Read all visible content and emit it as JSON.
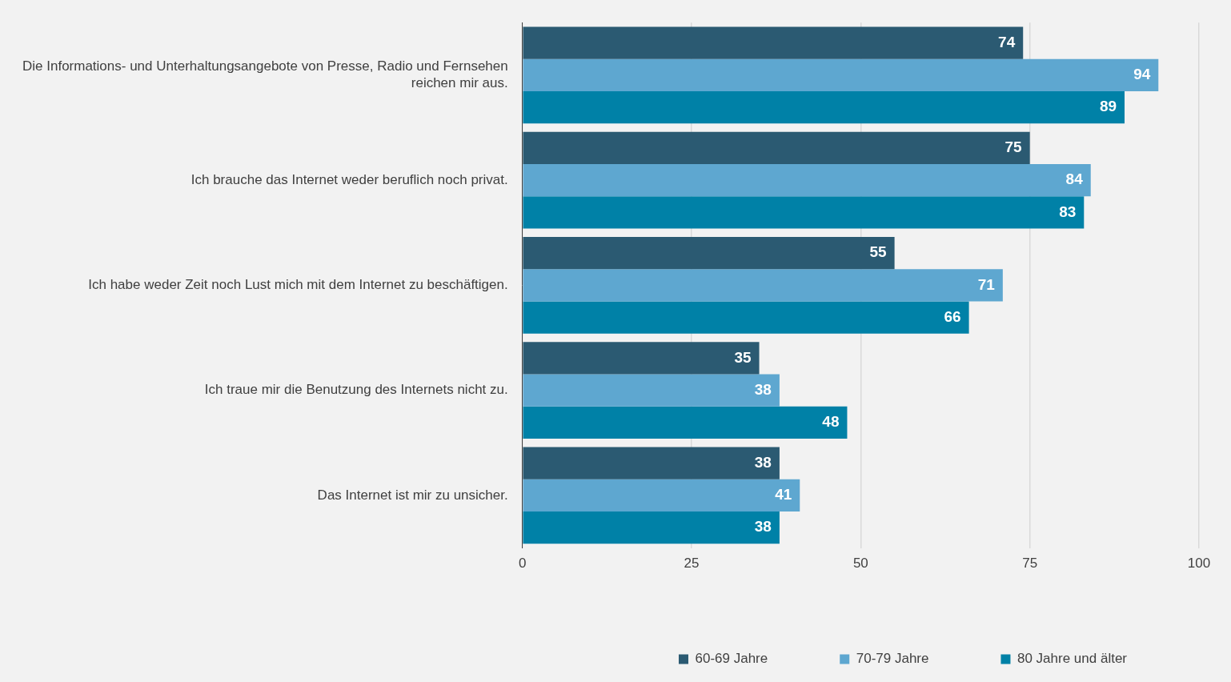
{
  "chart_data": {
    "type": "bar",
    "orientation": "horizontal",
    "categories": [
      [
        "Die Informations- und Unterhaltungsangebote von Presse, Radio und Fernsehen",
        "reichen mir aus."
      ],
      "Ich brauche das Internet weder beruflich noch privat.",
      "Ich habe weder Zeit noch Lust mich mit dem Internet zu beschäftigen.",
      "Ich traue mir die Benutzung des Internets nicht zu.",
      "Das Internet ist mir zu unsicher."
    ],
    "series": [
      {
        "name": "60-69 Jahre",
        "color": "#2b5a72",
        "values": [
          74,
          75,
          55,
          35,
          38
        ]
      },
      {
        "name": "70-79 Jahre",
        "color": "#5ea7d0",
        "values": [
          94,
          84,
          71,
          38,
          41
        ]
      },
      {
        "name": "80 Jahre und älter",
        "color": "#0081a7",
        "values": [
          89,
          83,
          66,
          48,
          38
        ]
      }
    ],
    "xlim": [
      0,
      100
    ],
    "xticks": [
      0,
      25,
      50,
      75,
      100
    ],
    "grid": true,
    "legend": "bottom",
    "data_labels": true
  }
}
